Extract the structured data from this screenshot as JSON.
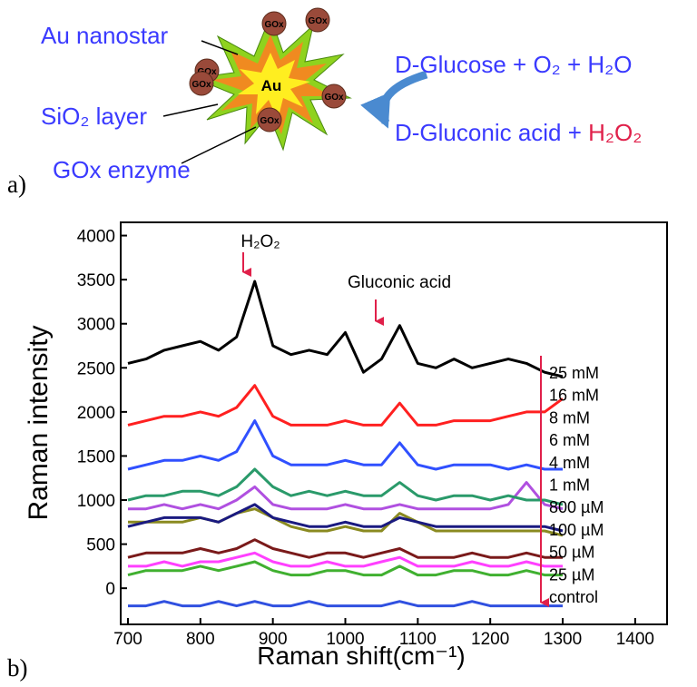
{
  "panel_labels": [
    "a)",
    "b)"
  ],
  "diagram": {
    "core_label": "Au",
    "gox_labels": [
      "GOx",
      "GOx",
      "GOx",
      "GOx",
      "GOx",
      "GOx"
    ],
    "callouts": [
      "Au nanostar",
      "SiO₂ layer",
      "GOx enzyme"
    ],
    "reaction": {
      "reactants": "D-Glucose + O₂ + H₂O",
      "products": "D-Gluconic acid +",
      "product_highlight": "H₂O₂"
    }
  },
  "chart_data": {
    "type": "line",
    "xlabel": "Raman shift(cm⁻¹)",
    "ylabel": "Raman intensity",
    "annotations": [
      "H₂O₂",
      "Gluconic acid"
    ],
    "xlim": [
      690,
      1444
    ],
    "ylim": [
      -410,
      4150
    ],
    "xticks": [
      700,
      800,
      900,
      1000,
      1100,
      1200,
      1300,
      1400
    ],
    "yticks": [
      0,
      500,
      1000,
      1500,
      2000,
      2500,
      3000,
      3500,
      4000
    ],
    "x": [
      700,
      725,
      750,
      775,
      800,
      825,
      850,
      875,
      900,
      925,
      950,
      975,
      1000,
      1025,
      1050,
      1075,
      1100,
      1125,
      1150,
      1175,
      1200,
      1225,
      1250,
      1275,
      1300
    ],
    "series": [
      {
        "name": "25 mM",
        "color": "#000000",
        "values": [
          2550,
          2600,
          2700,
          2750,
          2800,
          2700,
          2850,
          3480,
          2750,
          2650,
          2700,
          2650,
          2900,
          2450,
          2600,
          2980,
          2550,
          2500,
          2600,
          2500,
          2550,
          2600,
          2550,
          2450,
          2400
        ]
      },
      {
        "name": "16 mM",
        "color": "#ff2020",
        "values": [
          1850,
          1900,
          1950,
          1950,
          2000,
          1950,
          2050,
          2300,
          1950,
          1850,
          1850,
          1850,
          1900,
          1850,
          1850,
          2100,
          1850,
          1850,
          1900,
          1900,
          1900,
          1950,
          2000,
          2000,
          2150
        ]
      },
      {
        "name": "8 mM",
        "color": "#3050ff",
        "values": [
          1350,
          1400,
          1450,
          1450,
          1500,
          1450,
          1550,
          1900,
          1500,
          1400,
          1400,
          1400,
          1450,
          1400,
          1400,
          1650,
          1400,
          1350,
          1400,
          1400,
          1400,
          1350,
          1400,
          1350,
          1350
        ]
      },
      {
        "name": "6 mM",
        "color": "#2a9a6a",
        "values": [
          1000,
          1050,
          1050,
          1100,
          1100,
          1050,
          1150,
          1350,
          1150,
          1050,
          1100,
          1050,
          1100,
          1050,
          1050,
          1200,
          1050,
          1000,
          1050,
          1050,
          1000,
          1050,
          1000,
          1000,
          950
        ]
      },
      {
        "name": "4 mM",
        "color": "#b050e0",
        "values": [
          900,
          900,
          950,
          900,
          950,
          900,
          1000,
          1150,
          950,
          900,
          900,
          900,
          950,
          900,
          900,
          950,
          900,
          900,
          900,
          900,
          900,
          950,
          1200,
          950,
          900
        ]
      },
      {
        "name": "1 mM",
        "color": "#1a1a80",
        "values": [
          700,
          750,
          800,
          800,
          800,
          750,
          850,
          950,
          800,
          750,
          700,
          700,
          750,
          700,
          700,
          800,
          750,
          700,
          700,
          700,
          700,
          700,
          700,
          700,
          650
        ]
      },
      {
        "name": "800 µM",
        "color": "#8a8a20",
        "values": [
          750,
          750,
          750,
          750,
          800,
          750,
          850,
          900,
          800,
          700,
          650,
          650,
          700,
          650,
          650,
          850,
          750,
          650,
          650,
          650,
          650,
          650,
          650,
          650,
          600
        ]
      },
      {
        "name": "100 µM",
        "color": "#7a1a1a",
        "values": [
          350,
          400,
          400,
          400,
          450,
          400,
          450,
          550,
          450,
          400,
          350,
          400,
          400,
          350,
          400,
          450,
          350,
          350,
          350,
          400,
          350,
          350,
          400,
          350,
          350
        ]
      },
      {
        "name": "50 µM",
        "color": "#ff40ff",
        "values": [
          250,
          250,
          300,
          250,
          300,
          300,
          350,
          400,
          300,
          250,
          250,
          300,
          250,
          250,
          300,
          350,
          250,
          250,
          250,
          300,
          250,
          250,
          300,
          250,
          250
        ]
      },
      {
        "name": "25 µM",
        "color": "#40b030",
        "values": [
          150,
          200,
          200,
          200,
          250,
          200,
          250,
          300,
          200,
          150,
          150,
          200,
          200,
          150,
          150,
          250,
          150,
          150,
          200,
          200,
          150,
          150,
          200,
          150,
          150
        ]
      },
      {
        "name": "control",
        "color": "#3050e0",
        "values": [
          -200,
          -200,
          -150,
          -200,
          -200,
          -150,
          -200,
          -150,
          -200,
          -200,
          -150,
          -200,
          -200,
          -200,
          -200,
          -150,
          -200,
          -200,
          -200,
          -150,
          -200,
          -200,
          -200,
          -200,
          -200
        ]
      }
    ]
  }
}
